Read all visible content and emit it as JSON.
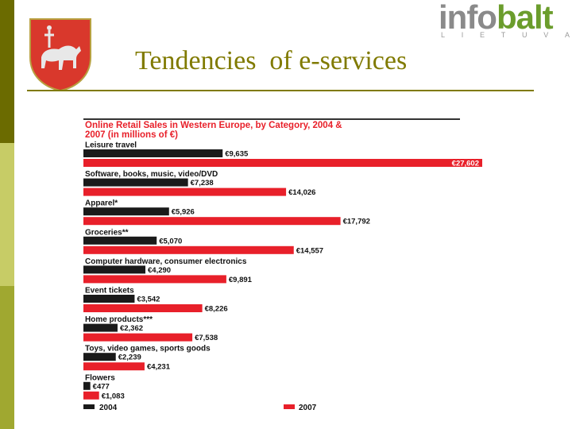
{
  "slide": {
    "title": "Tendencies  of e-services",
    "logo": {
      "part1": "info",
      "part2": "balt",
      "subtitle_letters": [
        "L",
        "I",
        "E",
        "T",
        "U",
        "V",
        "A"
      ]
    },
    "colors": {
      "title": "#807a00",
      "bar_2004": "#1a1a1a",
      "bar_2007": "#e8202a"
    }
  },
  "chart_data": {
    "type": "bar",
    "orientation": "horizontal",
    "title": "Online Retail Sales in Western Europe, by Category, 2004 & 2007 (in millions of €)",
    "categories": [
      "Leisure travel",
      "Software, books, music, video/DVD",
      "Apparel*",
      "Groceries**",
      "Computer hardware, consumer electronics",
      "Event tickets",
      "Home products***",
      "Toys, video games, sports goods",
      "Flowers"
    ],
    "series": [
      {
        "name": "2004",
        "values": [
          9635,
          7238,
          5926,
          5070,
          4290,
          3542,
          2362,
          2239,
          477
        ],
        "labels": [
          "€9,635",
          "€7,238",
          "€5,926",
          "€5,070",
          "€4,290",
          "€3,542",
          "€2,362",
          "€2,239",
          "€477"
        ]
      },
      {
        "name": "2007",
        "values": [
          27602,
          14026,
          17792,
          14557,
          9891,
          8226,
          7538,
          4231,
          1083
        ],
        "labels": [
          "€27,602",
          "€14,026",
          "€17,792",
          "€14,557",
          "€9,891",
          "€8,226",
          "€7,538",
          "€4,231",
          "€1,083"
        ]
      }
    ],
    "legend_position": "bottom",
    "grid": false
  }
}
